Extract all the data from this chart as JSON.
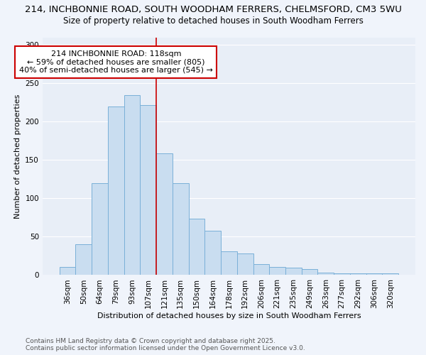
{
  "title_line1": "214, INCHBONNIE ROAD, SOUTH WOODHAM FERRERS, CHELMSFORD, CM3 5WU",
  "title_line2": "Size of property relative to detached houses in South Woodham Ferrers",
  "xlabel": "Distribution of detached houses by size in South Woodham Ferrers",
  "ylabel": "Number of detached properties",
  "footer_line1": "Contains HM Land Registry data © Crown copyright and database right 2025.",
  "footer_line2": "Contains public sector information licensed under the Open Government Licence v3.0.",
  "categories": [
    "36sqm",
    "50sqm",
    "64sqm",
    "79sqm",
    "93sqm",
    "107sqm",
    "121sqm",
    "135sqm",
    "150sqm",
    "164sqm",
    "178sqm",
    "192sqm",
    "206sqm",
    "221sqm",
    "235sqm",
    "249sqm",
    "263sqm",
    "277sqm",
    "292sqm",
    "306sqm",
    "320sqm"
  ],
  "values": [
    11,
    40,
    120,
    220,
    235,
    222,
    159,
    120,
    74,
    58,
    31,
    28,
    14,
    11,
    10,
    8,
    3,
    2,
    2,
    2,
    2
  ],
  "bar_color": "#c9ddf0",
  "bar_edge_color": "#7ab0d8",
  "property_line_index": 6,
  "property_line_color": "#cc0000",
  "annotation_line1": "214 INCHBONNIE ROAD: 118sqm",
  "annotation_line2": "← 59% of detached houses are smaller (805)",
  "annotation_line3": "40% of semi-detached houses are larger (545) →",
  "annotation_box_edge_color": "#cc0000",
  "ylim": [
    0,
    310
  ],
  "yticks": [
    0,
    50,
    100,
    150,
    200,
    250,
    300
  ],
  "fig_bg_color": "#f0f4fb",
  "ax_bg_color": "#e8eef7",
  "grid_color": "#ffffff",
  "title_fontsize": 9.5,
  "subtitle_fontsize": 8.5,
  "xlabel_fontsize": 8.0,
  "ylabel_fontsize": 8.0,
  "tick_fontsize": 7.5,
  "annotation_fontsize": 8.0,
  "footer_fontsize": 6.5
}
